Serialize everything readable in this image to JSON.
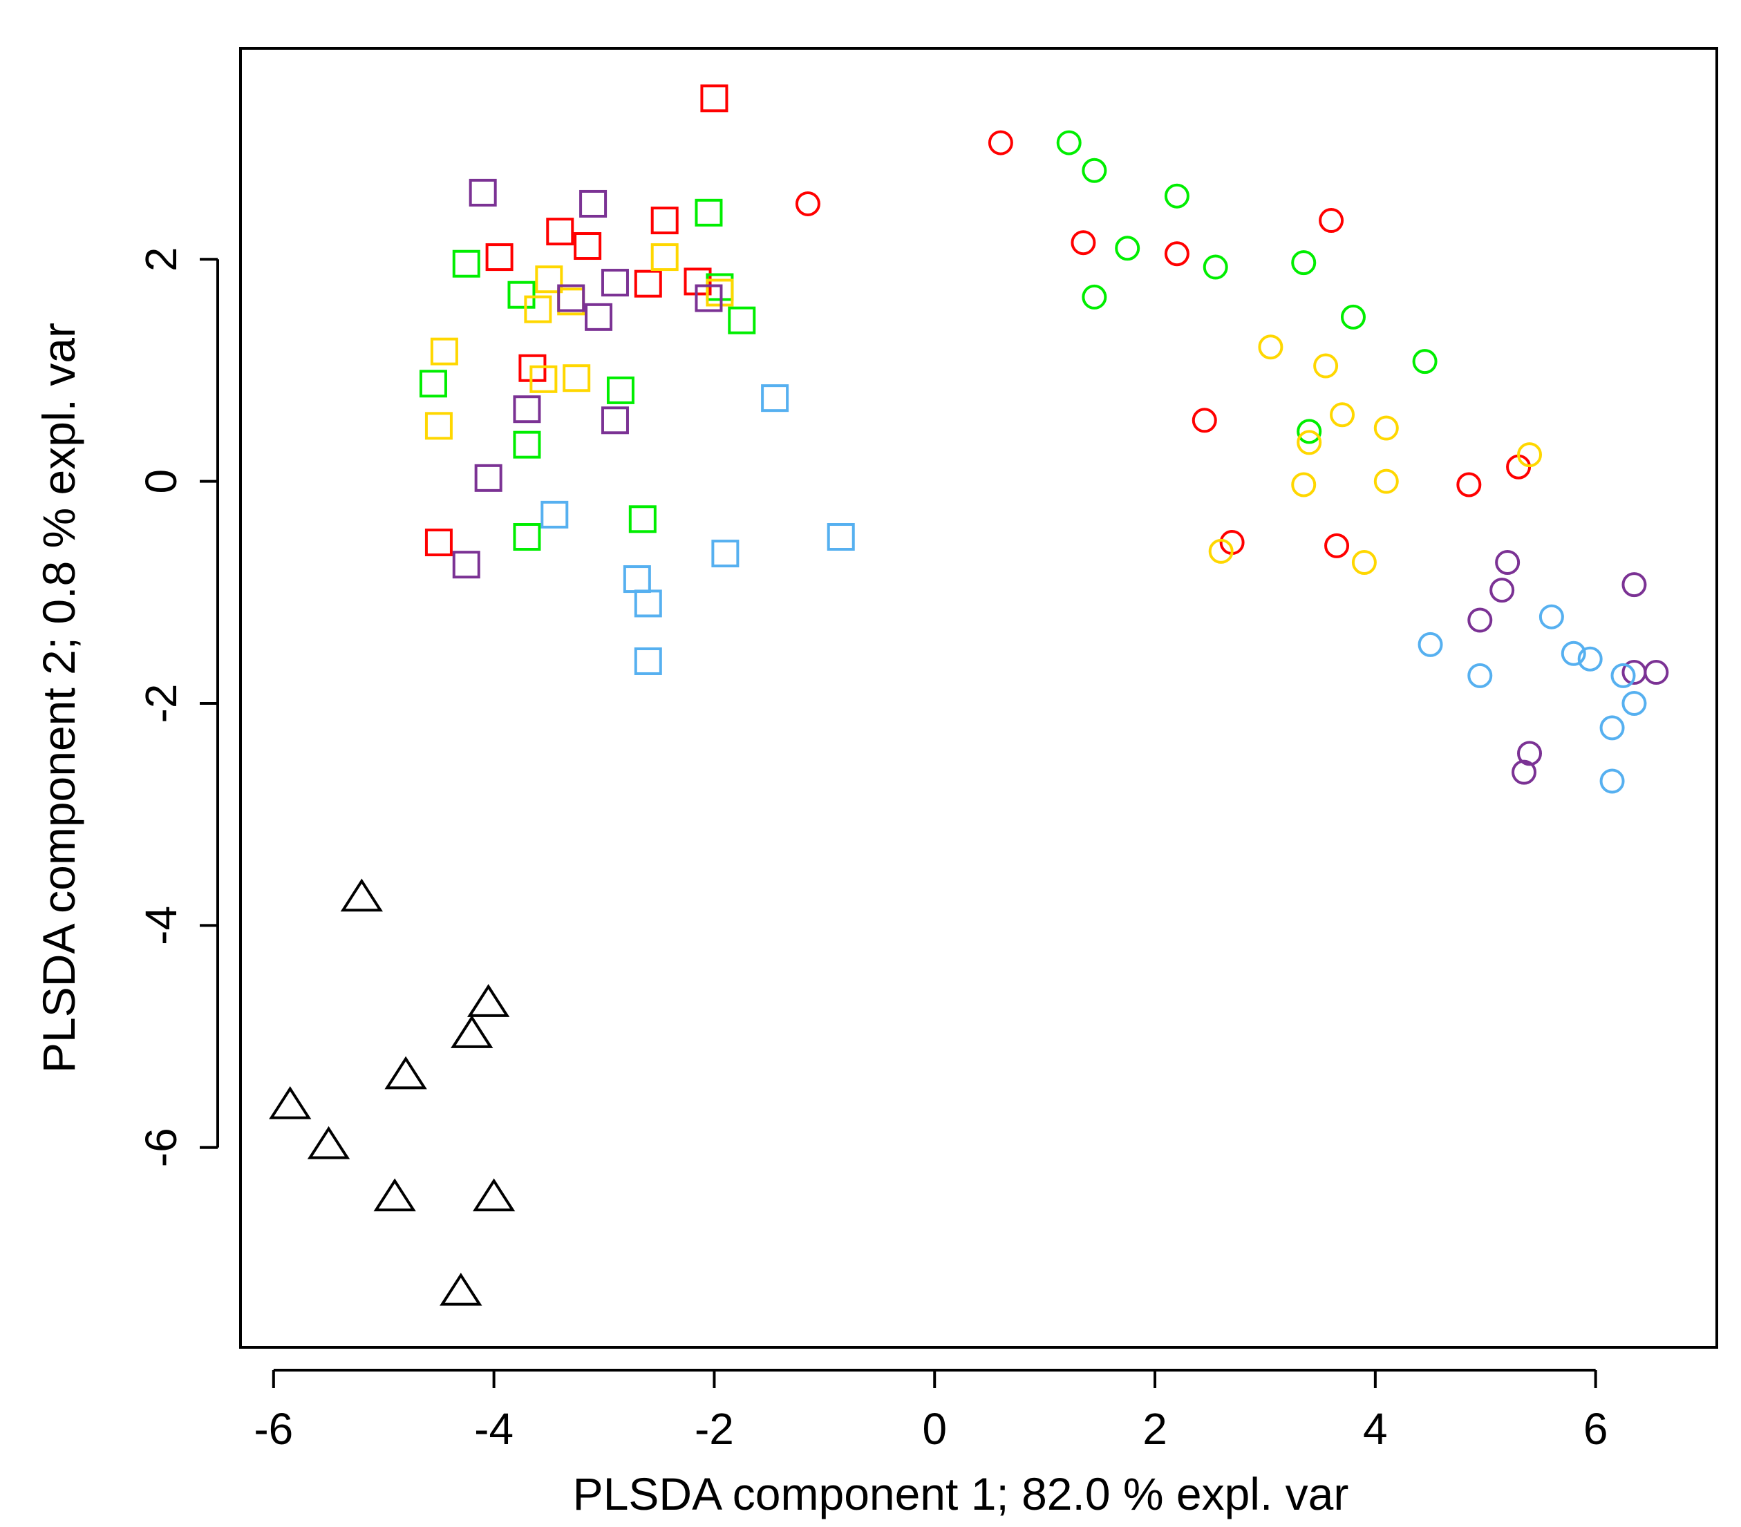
{
  "chart_data": {
    "type": "scatter",
    "title": "",
    "xlabel": "PLSDA component 1; 82.0 % expl. var",
    "ylabel": "PLSDA component 2; 0.8 % expl. var",
    "xlim": [
      -6.3,
      7.1
    ],
    "ylim": [
      -7.8,
      3.9
    ],
    "xticks": [
      -6,
      -4,
      -2,
      0,
      2,
      4,
      6
    ],
    "yticks": [
      -6,
      -4,
      -2,
      0,
      2
    ],
    "xtick_labels": [
      "-6",
      "-4",
      "-2",
      "0",
      "2",
      "4",
      "6"
    ],
    "ytick_labels": [
      "-6",
      "-4",
      "-2",
      "0",
      "2"
    ],
    "grid": false,
    "series": [
      {
        "name": "red-square",
        "color": "#ff0000",
        "marker": "square",
        "points": [
          [
            -2.0,
            3.45
          ],
          [
            -3.4,
            2.25
          ],
          [
            -3.15,
            2.12
          ],
          [
            -2.45,
            2.35
          ],
          [
            -3.95,
            2.02
          ],
          [
            -2.6,
            1.78
          ],
          [
            -2.15,
            1.8
          ],
          [
            -3.65,
            1.02
          ],
          [
            -4.5,
            -0.55
          ]
        ]
      },
      {
        "name": "green-square",
        "color": "#00ee00",
        "marker": "square",
        "points": [
          [
            -2.05,
            2.42
          ],
          [
            -4.25,
            1.96
          ],
          [
            -3.75,
            1.68
          ],
          [
            -1.95,
            1.75
          ],
          [
            -1.75,
            1.45
          ],
          [
            -4.55,
            0.88
          ],
          [
            -2.85,
            0.82
          ],
          [
            -3.7,
            0.33
          ],
          [
            -3.7,
            -0.5
          ],
          [
            -2.65,
            -0.34
          ]
        ]
      },
      {
        "name": "yellow-square",
        "color": "#ffd700",
        "marker": "square",
        "points": [
          [
            -2.45,
            2.02
          ],
          [
            -3.5,
            1.82
          ],
          [
            -3.6,
            1.55
          ],
          [
            -3.3,
            1.62
          ],
          [
            -1.95,
            1.7
          ],
          [
            -4.45,
            1.17
          ],
          [
            -3.55,
            0.92
          ],
          [
            -3.25,
            0.93
          ],
          [
            -4.5,
            0.5
          ]
        ]
      },
      {
        "name": "purple-square",
        "color": "#7b3294",
        "marker": "square",
        "points": [
          [
            -4.1,
            2.6
          ],
          [
            -3.1,
            2.5
          ],
          [
            -2.9,
            1.79
          ],
          [
            -3.3,
            1.65
          ],
          [
            -3.05,
            1.48
          ],
          [
            -2.05,
            1.65
          ],
          [
            -3.7,
            0.65
          ],
          [
            -2.9,
            0.55
          ],
          [
            -4.05,
            0.03
          ],
          [
            -4.25,
            -0.75
          ]
        ]
      },
      {
        "name": "blue-square",
        "color": "#56b0f0",
        "marker": "square",
        "points": [
          [
            -1.45,
            0.75
          ],
          [
            -3.45,
            -0.3
          ],
          [
            -0.85,
            -0.5
          ],
          [
            -1.9,
            -0.65
          ],
          [
            -2.7,
            -0.88
          ],
          [
            -2.6,
            -1.1
          ],
          [
            -2.6,
            -1.62
          ]
        ]
      },
      {
        "name": "red-circle",
        "color": "#ff0000",
        "marker": "circle",
        "points": [
          [
            0.6,
            3.05
          ],
          [
            -1.15,
            2.5
          ],
          [
            3.6,
            2.35
          ],
          [
            1.35,
            2.15
          ],
          [
            2.2,
            2.05
          ],
          [
            2.45,
            0.55
          ],
          [
            2.7,
            -0.55
          ],
          [
            3.65,
            -0.58
          ],
          [
            4.85,
            -0.03
          ],
          [
            5.3,
            0.13
          ]
        ]
      },
      {
        "name": "green-circle",
        "color": "#00ee00",
        "marker": "circle",
        "points": [
          [
            1.22,
            3.05
          ],
          [
            1.45,
            2.8
          ],
          [
            2.2,
            2.57
          ],
          [
            1.75,
            2.1
          ],
          [
            2.55,
            1.93
          ],
          [
            3.35,
            1.97
          ],
          [
            1.45,
            1.66
          ],
          [
            3.8,
            1.48
          ],
          [
            4.45,
            1.08
          ],
          [
            3.4,
            0.45
          ]
        ]
      },
      {
        "name": "yellow-circle",
        "color": "#ffd700",
        "marker": "circle",
        "points": [
          [
            3.05,
            1.21
          ],
          [
            3.55,
            1.04
          ],
          [
            3.7,
            0.6
          ],
          [
            4.1,
            0.48
          ],
          [
            3.4,
            0.35
          ],
          [
            5.4,
            0.24
          ],
          [
            3.35,
            -0.03
          ],
          [
            4.1,
            0.0
          ],
          [
            2.6,
            -0.63
          ],
          [
            3.9,
            -0.73
          ]
        ]
      },
      {
        "name": "purple-circle",
        "color": "#7b3294",
        "marker": "circle",
        "points": [
          [
            5.2,
            -0.73
          ],
          [
            5.15,
            -0.98
          ],
          [
            6.35,
            -0.93
          ],
          [
            4.95,
            -1.25
          ],
          [
            6.35,
            -1.72
          ],
          [
            6.55,
            -1.72
          ],
          [
            5.4,
            -2.45
          ],
          [
            5.35,
            -2.62
          ]
        ]
      },
      {
        "name": "blue-circle",
        "color": "#56b0f0",
        "marker": "circle",
        "points": [
          [
            5.6,
            -1.22
          ],
          [
            4.5,
            -1.47
          ],
          [
            5.8,
            -1.55
          ],
          [
            5.95,
            -1.6
          ],
          [
            4.95,
            -1.75
          ],
          [
            6.25,
            -1.75
          ],
          [
            6.35,
            -2.0
          ],
          [
            6.15,
            -2.22
          ],
          [
            6.15,
            -2.7
          ]
        ]
      },
      {
        "name": "black-triangle",
        "color": "#000000",
        "marker": "triangle",
        "points": [
          [
            -5.2,
            -3.75
          ],
          [
            -4.05,
            -4.7
          ],
          [
            -4.2,
            -4.98
          ],
          [
            -4.8,
            -5.35
          ],
          [
            -5.85,
            -5.62
          ],
          [
            -5.5,
            -5.98
          ],
          [
            -4.9,
            -6.45
          ],
          [
            -4.0,
            -6.45
          ],
          [
            -4.3,
            -7.3
          ]
        ]
      }
    ]
  }
}
